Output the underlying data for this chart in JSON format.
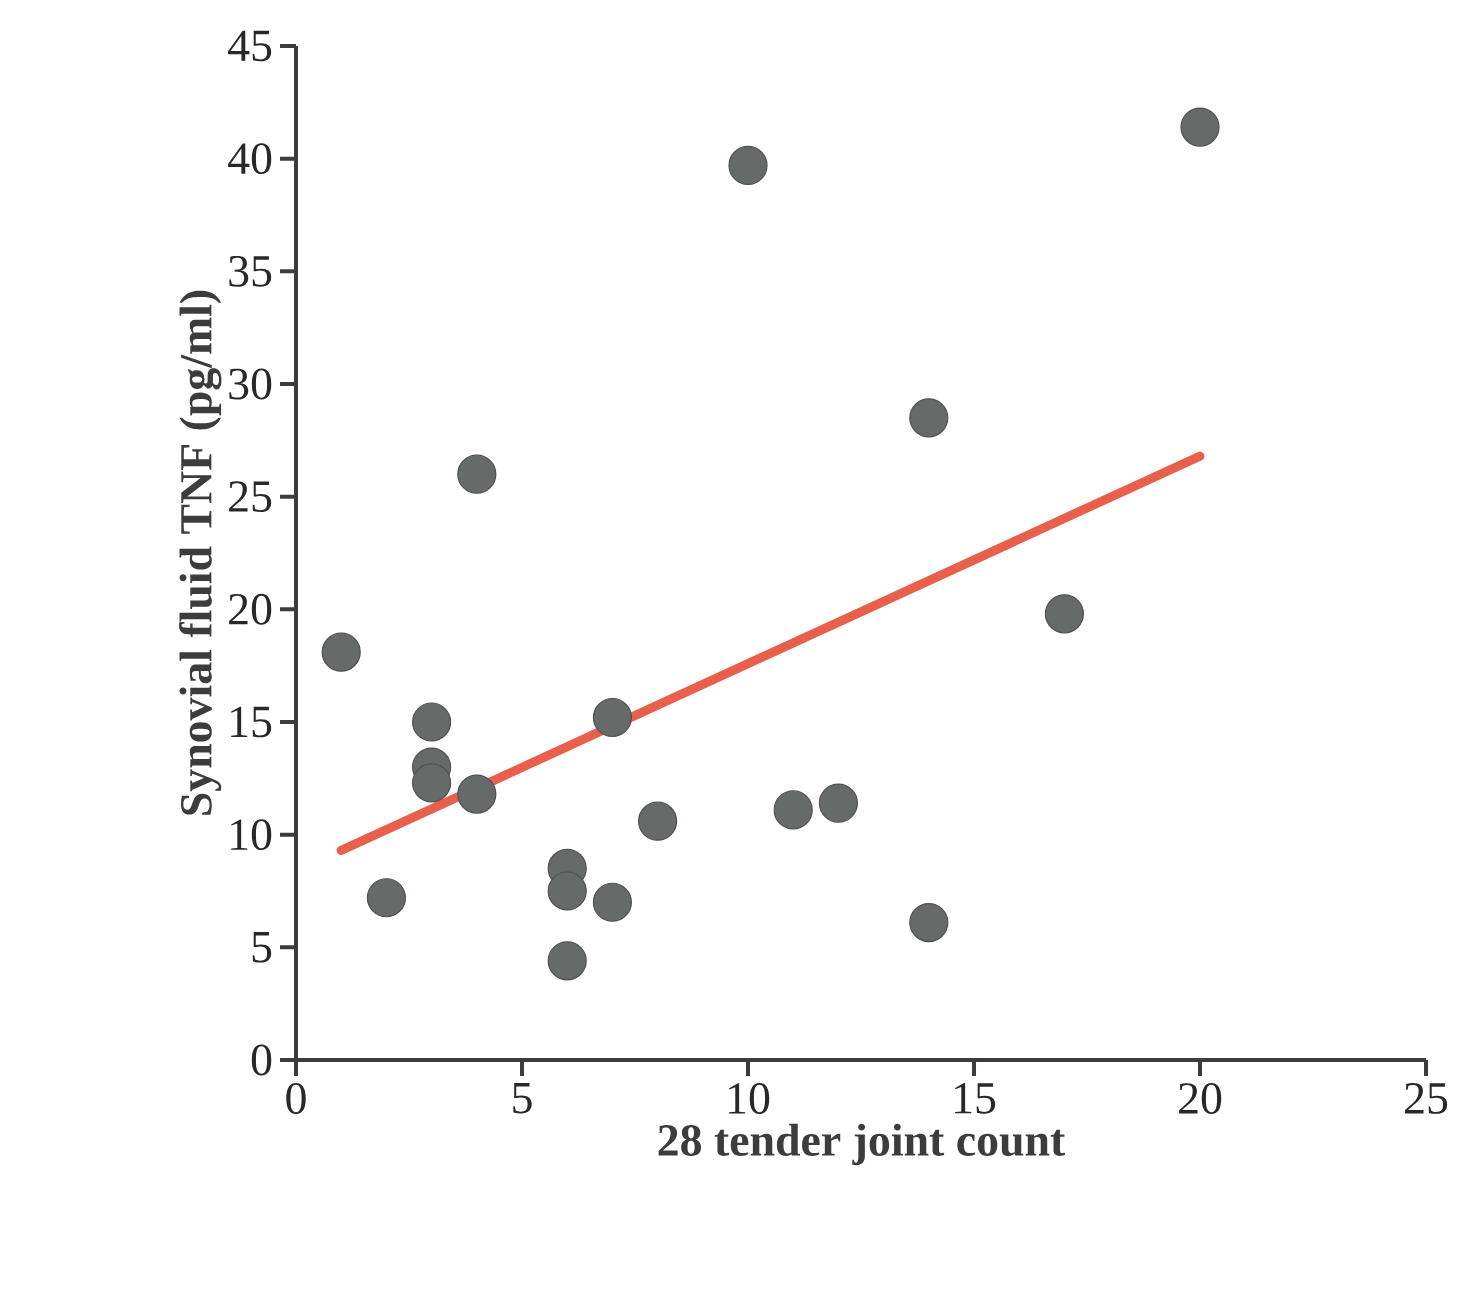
{
  "chart_data": {
    "type": "scatter",
    "xlabel": "28 tender joint count",
    "ylabel": "Synovial fluid TNF (pg/ml)",
    "xlim": [
      0,
      25
    ],
    "ylim": [
      0,
      45
    ],
    "xticks": [
      0,
      5,
      10,
      15,
      20,
      25
    ],
    "yticks": [
      0,
      5,
      10,
      15,
      20,
      25,
      30,
      35,
      40,
      45
    ],
    "series": [
      {
        "color": "#666a68",
        "marker": "circle",
        "x": [
          1,
          2,
          3,
          3,
          3,
          4,
          4,
          6,
          6,
          6,
          7,
          7,
          8,
          10,
          11,
          12,
          14,
          14,
          17,
          20
        ],
        "values": [
          18.1,
          7.2,
          15.0,
          13.0,
          12.3,
          26.0,
          11.8,
          8.5,
          7.5,
          4.4,
          7.0,
          15.2,
          10.6,
          39.7,
          11.1,
          11.4,
          28.5,
          6.1,
          19.8,
          41.4
        ]
      },
      {
        "type": "line",
        "marker": "none",
        "color": "#e8604c",
        "x": [
          1,
          20
        ],
        "values": [
          9.3,
          26.8
        ]
      }
    ]
  }
}
